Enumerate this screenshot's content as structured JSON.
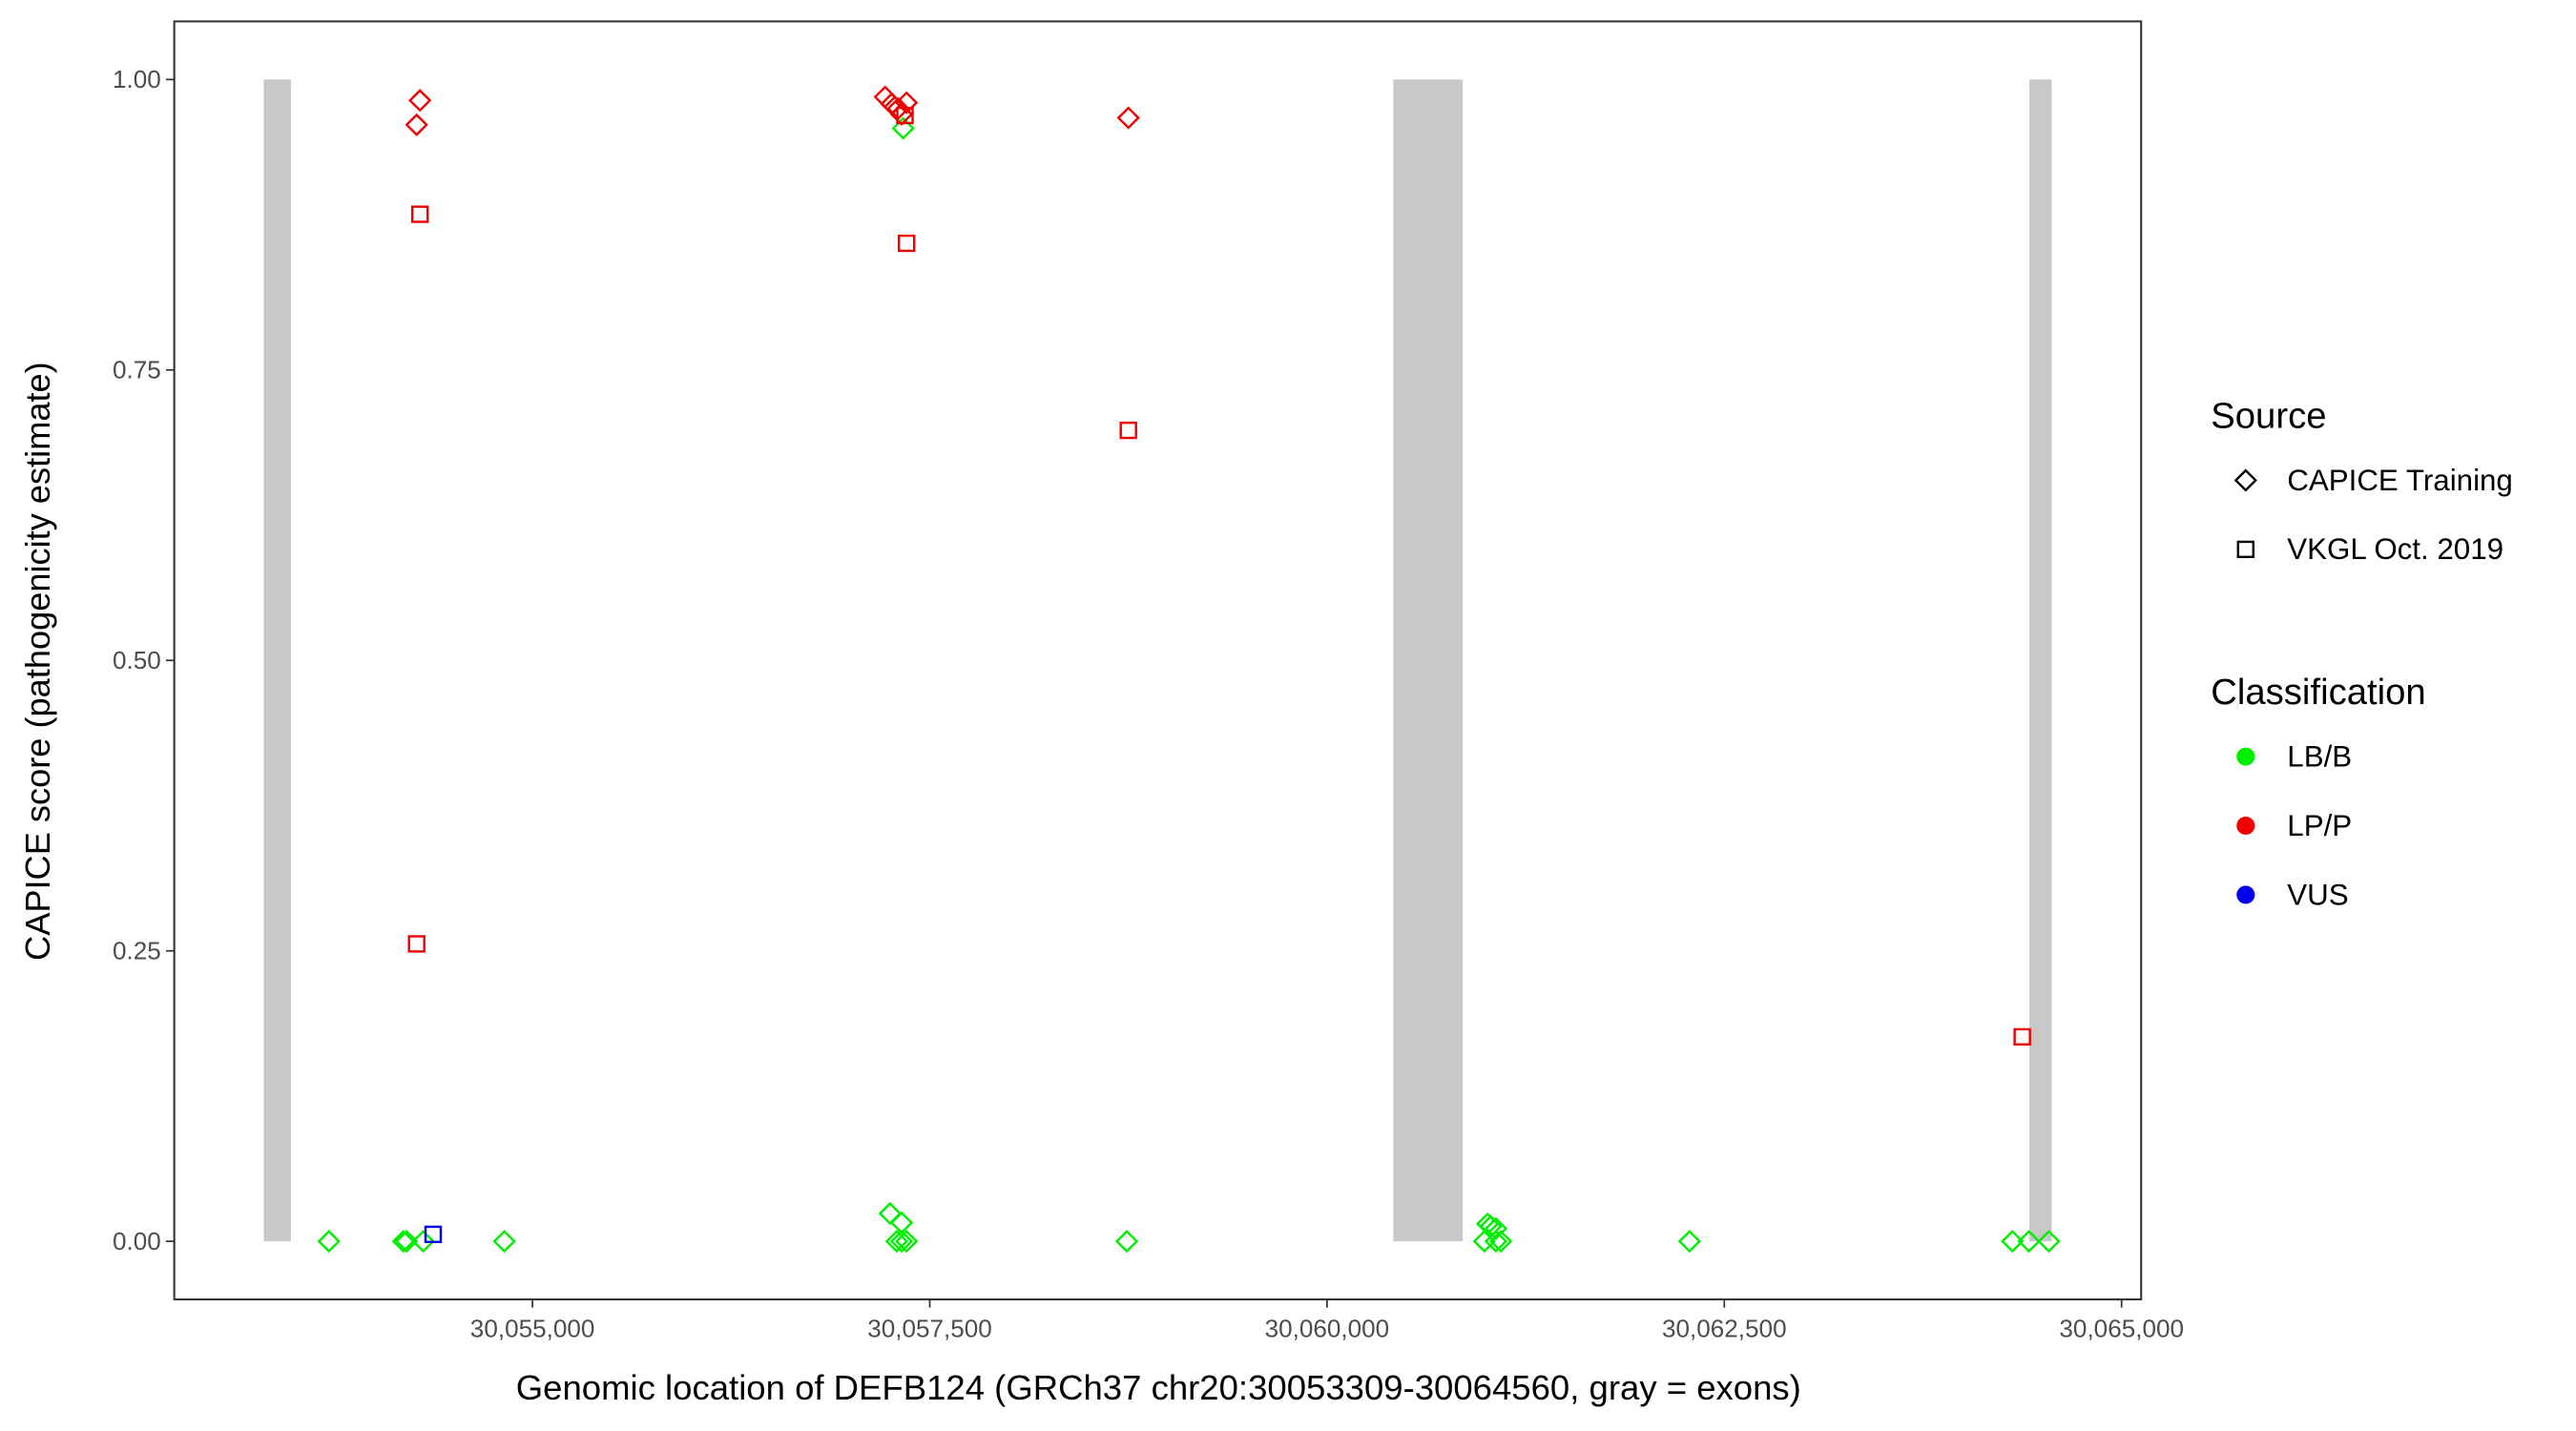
{
  "chart_data": {
    "type": "scatter",
    "x_label": "Genomic location of DEFB124 (GRCh37 chr20:30053309-30064560, gray = exons)",
    "y_label": "CAPICE score (pathogenicity estimate)",
    "xlim": [
      30052746,
      30065123
    ],
    "ylim": [
      -0.05,
      1.05
    ],
    "xticks": [
      {
        "value": 30055000,
        "label": "30,055,000"
      },
      {
        "value": 30057500,
        "label": "30,057,500"
      },
      {
        "value": 30060000,
        "label": "30,060,000"
      },
      {
        "value": 30062500,
        "label": "30,062,500"
      },
      {
        "value": 30065000,
        "label": "30,065,000"
      }
    ],
    "yticks": [
      {
        "value": 0,
        "label": "0.00"
      },
      {
        "value": 0.25,
        "label": "0.25"
      },
      {
        "value": 0.5,
        "label": "0.50"
      },
      {
        "value": 0.75,
        "label": "0.75"
      },
      {
        "value": 1,
        "label": "1.00"
      }
    ],
    "grid": false,
    "exon_color": "#c8c8c8",
    "exon_range": [
      0,
      1
    ],
    "exons": [
      {
        "start": 30053309,
        "end": 30053480
      },
      {
        "start": 30060417,
        "end": 30060854
      },
      {
        "start": 30064420,
        "end": 30064560
      }
    ],
    "shape_legend": {
      "title": "Source",
      "entries": [
        {
          "name": "CAPICE Training",
          "shape": "diamond"
        },
        {
          "name": "VKGL Oct. 2019",
          "shape": "square"
        }
      ]
    },
    "color_legend": {
      "title": "Classification",
      "entries": [
        {
          "name": "LB/B",
          "color": "#00ee00"
        },
        {
          "name": "LP/P",
          "color": "#ee0000"
        },
        {
          "name": "VUS",
          "color": "#0000ee"
        }
      ]
    },
    "series": [
      {
        "source": "CAPICE Training",
        "classification": "LB/B",
        "x": [
          30053719,
          30054188,
          30054208,
          30054313,
          30054823,
          30057250,
          30057323,
          30057292,
          30057323,
          30057354,
          30057333,
          30058740,
          30061010,
          30061031,
          30061063,
          30060990,
          30061063,
          30061094,
          30062281,
          30064313,
          30064417,
          30064542
        ],
        "y": [
          0,
          0,
          0,
          0,
          0,
          0.024,
          0.016,
          0,
          0,
          0,
          0.958,
          0,
          0.015,
          0.013,
          0.011,
          0,
          0,
          0,
          0,
          0,
          0,
          0
        ]
      },
      {
        "source": "CAPICE Training",
        "classification": "LP/P",
        "x": [
          30054292,
          30054271,
          30057219,
          30057260,
          30057302,
          30057354,
          30057323,
          30058750
        ],
        "y": [
          0.982,
          0.961,
          0.985,
          0.979,
          0.975,
          0.98,
          0.97,
          0.967
        ]
      },
      {
        "source": "VKGL Oct. 2019",
        "classification": "LP/P",
        "x": [
          30054292,
          30054271,
          30057344,
          30057354,
          30058750,
          30064375
        ],
        "y": [
          0.884,
          0.256,
          0.969,
          0.859,
          0.698,
          0.176
        ]
      },
      {
        "source": "VKGL Oct. 2019",
        "classification": "VUS",
        "x": [
          30054375
        ],
        "y": [
          0.006
        ]
      }
    ]
  }
}
